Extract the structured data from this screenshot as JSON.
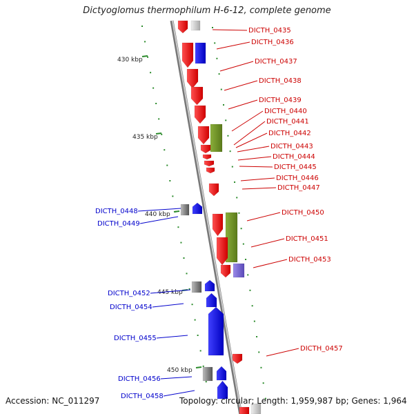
{
  "title": "Dictyoglomus thermophilum H-6-12, complete genome",
  "accession": "Accession: NC_011297",
  "topology": "Topology: circular; Length: 1,959,987 bp; Genes: 1,964",
  "colors": {
    "forward": "#ff0000",
    "reverse": "#0000ff",
    "pseudo": "#808080",
    "other": "#6b8e23",
    "label_fwd": "#cc0000",
    "label_rev": "#0000cc",
    "scale": "#2a8a2a",
    "backbone": "#999999"
  },
  "scale_ticks": [
    {
      "label": "430 kbp",
      "tick": 2
    },
    {
      "label": "435 kbp",
      "tick": 7
    },
    {
      "label": "440 kbp",
      "tick": 12
    },
    {
      "label": "445 kbp",
      "tick": 17
    },
    {
      "label": "450 kbp",
      "tick": 22
    }
  ],
  "gene_labels_forward": [
    "DICTH_0435",
    "DICTH_0436",
    "DICTH_0437",
    "DICTH_0438",
    "DICTH_0439",
    "DICTH_0440",
    "DICTH_0441",
    "DICTH_0442",
    "DICTH_0443",
    "DICTH_0444",
    "DICTH_0445",
    "DICTH_0446",
    "DICTH_0447",
    "DICTH_0450",
    "DICTH_0451",
    "DICTH_0453",
    "DICTH_0457"
  ],
  "gene_labels_reverse": [
    "DICTH_0448",
    "DICTH_0449",
    "DICTH_0452",
    "DICTH_0454",
    "DICTH_0455",
    "DICTH_0456",
    "DICTH_0458"
  ]
}
